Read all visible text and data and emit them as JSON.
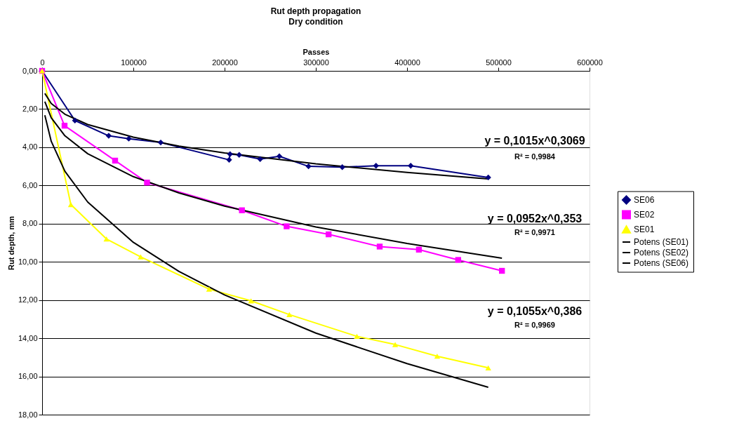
{
  "chart_data": {
    "type": "line",
    "title": "Rut depth propagation",
    "subtitle": "Dry condition",
    "xlabel": "Passes",
    "ylabel": "Rut depth, mm",
    "xlim": [
      0,
      600000
    ],
    "xticks": [
      0,
      100000,
      200000,
      300000,
      400000,
      500000,
      600000
    ],
    "ylim": [
      18,
      0
    ],
    "yticks": [
      {
        "value": 0,
        "label": "0,00"
      },
      {
        "value": 2,
        "label": "2,00"
      },
      {
        "value": 4,
        "label": "4,00"
      },
      {
        "value": 6,
        "label": "6,00"
      },
      {
        "value": 8,
        "label": "8,00"
      },
      {
        "value": 10,
        "label": "10,00"
      },
      {
        "value": 12,
        "label": "12,00"
      },
      {
        "value": 14,
        "label": "14,00"
      },
      {
        "value": 16,
        "label": "16,00"
      },
      {
        "value": 18,
        "label": "18,00"
      }
    ],
    "grid": "y",
    "legend": "right",
    "series": [
      {
        "name": "SE06",
        "color": "#000080",
        "marker": "diamond",
        "x": [
          0,
          36000,
          73000,
          95000,
          130000,
          205000,
          206000,
          216000,
          239000,
          260000,
          292000,
          329000,
          366000,
          404000,
          489000
        ],
        "values": [
          0,
          2.6,
          3.4,
          3.55,
          3.75,
          4.66,
          4.36,
          4.4,
          4.62,
          4.47,
          5.0,
          5.04,
          4.97,
          4.97,
          5.58
        ]
      },
      {
        "name": "SE02",
        "color": "#ff00ff",
        "marker": "square",
        "x": [
          0,
          24600,
          80000,
          115000,
          219000,
          268000,
          314000,
          370000,
          413000,
          456000,
          504000
        ],
        "values": [
          0,
          2.87,
          4.7,
          5.85,
          7.3,
          8.14,
          8.56,
          9.2,
          9.36,
          9.9,
          10.47
        ]
      },
      {
        "name": "SE01",
        "color": "#ffff00",
        "marker": "triangle",
        "x": [
          0,
          31500,
          70500,
          108000,
          183000,
          229000,
          271000,
          345000,
          387000,
          433000,
          489000
        ],
        "values": [
          0,
          7.0,
          8.8,
          9.74,
          11.43,
          12.04,
          12.76,
          13.9,
          14.33,
          14.94,
          15.55
        ]
      },
      {
        "name": "Potens (SE01)",
        "color": "#000000",
        "marker": "none",
        "x": [
          3000,
          10000,
          25000,
          50000,
          100000,
          150000,
          200000,
          300000,
          400000,
          489000
        ],
        "values": [
          2.32,
          3.69,
          5.26,
          6.87,
          8.98,
          10.5,
          11.73,
          13.73,
          15.33,
          16.57
        ]
      },
      {
        "name": "Potens (SE02)",
        "color": "#000000",
        "marker": "none",
        "x": [
          3000,
          10000,
          25000,
          50000,
          100000,
          150000,
          200000,
          300000,
          400000,
          504000
        ],
        "values": [
          1.61,
          2.46,
          3.4,
          4.34,
          5.54,
          6.39,
          7.08,
          8.17,
          9.04,
          9.81
        ]
      },
      {
        "name": "Potens (SE06)",
        "color": "#000000",
        "marker": "none",
        "x": [
          3000,
          10000,
          25000,
          50000,
          100000,
          150000,
          200000,
          300000,
          400000,
          489000
        ],
        "values": [
          1.18,
          1.71,
          2.27,
          2.81,
          3.47,
          3.94,
          4.3,
          4.87,
          5.32,
          5.66
        ]
      }
    ],
    "annotations": [
      "y = 0,1015x^0,3069",
      "R² = 0,9984",
      "y = 0,0952x^0,353",
      "R² = 0,9971",
      "y = 0,1055x^0,386",
      "R² = 0,9969"
    ]
  }
}
